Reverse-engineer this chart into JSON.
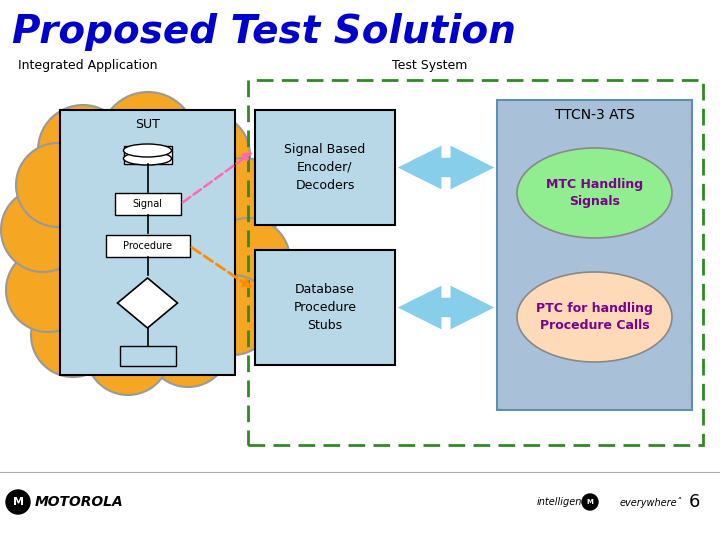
{
  "title": "Proposed Test Solution",
  "title_color": "#0000CC",
  "title_fontsize": 28,
  "bg_color": "#FFFFFF",
  "integrated_app_label": "Integrated Application",
  "test_system_label": "Test System",
  "ttcn_label": "TTCN-3 ATS",
  "sut_label": "SUT",
  "signal_label": "Signal",
  "procedure_label": "Procedure",
  "signal_based_label": "Signal Based\nEncoder/\nDecoders",
  "database_label": "Database\nProcedure\nStubs",
  "mtc_label": "MTC Handling\nSignals",
  "ptc_label": "PTC for handling\nProcedure Calls",
  "page_number": "6",
  "cloud_color": "#F5A623",
  "cloud_edge_color": "#999999",
  "sut_box_color": "#B8D8E8",
  "encoder_box_color": "#B8D8E8",
  "database_box_color": "#B8D8E8",
  "ttcn_box_color": "#A8C0D8",
  "mtc_circle_color": "#90EE90",
  "ptc_circle_color": "#FFDAB9",
  "signal_arrow_color": "#FF69B4",
  "procedure_arrow_color": "#FF8C00",
  "double_arrow_color": "#87CEEB",
  "dashed_border_color": "#2E8B22",
  "motorola_color": "#000000"
}
